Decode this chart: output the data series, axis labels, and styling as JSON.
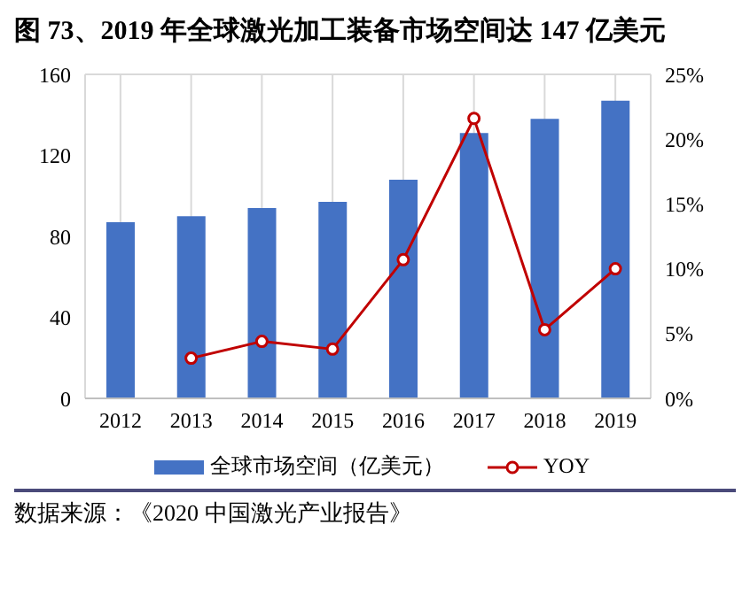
{
  "chart_data": {
    "type": "bar",
    "title": "图 73、2019 年全球激光加工装备市场空间达 147 亿美元",
    "categories": [
      "2012",
      "2013",
      "2014",
      "2015",
      "2016",
      "2017",
      "2018",
      "2019"
    ],
    "series": [
      {
        "name": "全球市场空间（亿美元）",
        "color": "#4472c4",
        "values": [
          87,
          90,
          94,
          97,
          108,
          131,
          138,
          147
        ]
      },
      {
        "name": "YOY",
        "type": "line",
        "axis": "y2",
        "color": "#c00000",
        "marker": "circle",
        "values": [
          null,
          3.1,
          4.4,
          3.8,
          10.7,
          21.6,
          5.3,
          10.0
        ]
      }
    ],
    "ylim": [
      0,
      160
    ],
    "yticks": [
      0,
      40,
      80,
      120,
      160
    ],
    "y2lim": [
      0,
      25
    ],
    "y2ticks": [
      {
        "value": 0,
        "label": "0%"
      },
      {
        "value": 5,
        "label": "5%"
      },
      {
        "value": 10,
        "label": "10%"
      },
      {
        "value": 15,
        "label": "15%"
      },
      {
        "value": 20,
        "label": "20%"
      },
      {
        "value": 25,
        "label": "25%"
      }
    ],
    "grid": true,
    "legend": "bottom",
    "annotations": [
      "数据来源：《2020 中国激光产业报告》"
    ]
  }
}
